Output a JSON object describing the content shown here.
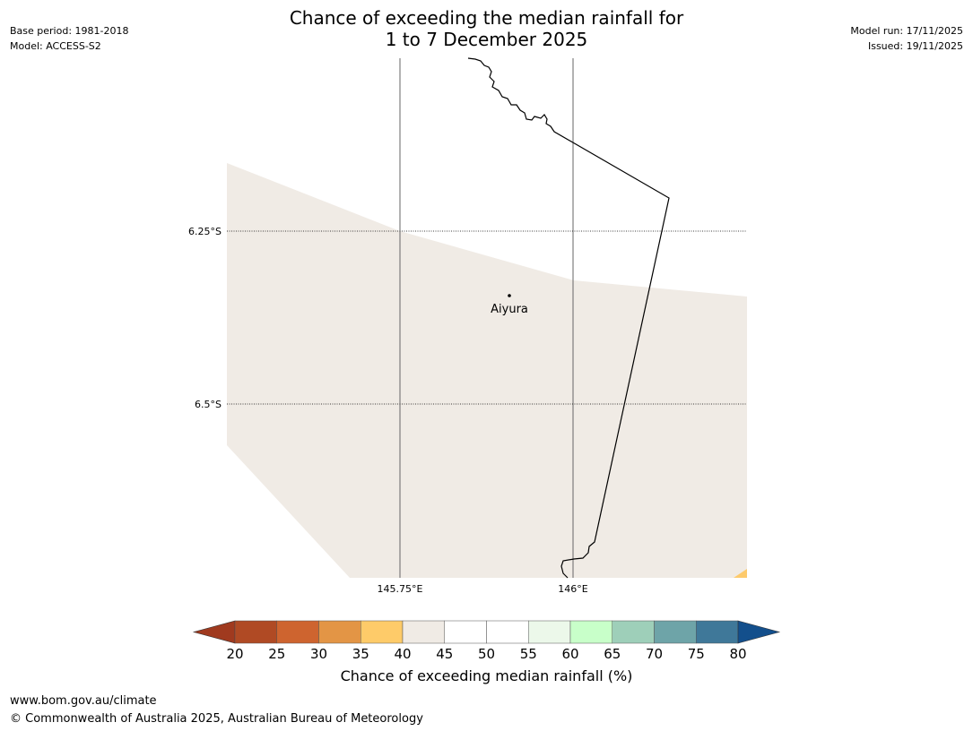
{
  "title_line1": "Chance of exceeding the median rainfall for",
  "title_line2": "1 to 7 December 2025",
  "meta_left": {
    "base_period": "Base period: 1981-2018",
    "model": "Model: ACCESS-S2"
  },
  "meta_right": {
    "model_run": "Model run: 17/11/2025",
    "issued": "Issued: 19/11/2025"
  },
  "map": {
    "latitude_lines": [
      "6.25°S",
      "6.5°S"
    ],
    "longitude_lines": [
      "145.75°E",
      "146°E"
    ],
    "place": {
      "name": "Aiyura"
    },
    "colors": {
      "forecast_area": "#f0ebe5",
      "corner_patch": "#fdca6c",
      "gridline": "#000000",
      "boundary": "#000000"
    }
  },
  "colorbar": {
    "tick_labels": [
      "20",
      "25",
      "30",
      "35",
      "40",
      "45",
      "50",
      "55",
      "60",
      "65",
      "70",
      "75",
      "80"
    ],
    "under_color": "#a03a1f",
    "over_color": "#134f8c",
    "bin_colors": [
      "#b04a24",
      "#ce642f",
      "#e39545",
      "#fecb69",
      "#f0ebe5",
      "#ffffff",
      "#ffffff",
      "#ecf8ea",
      "#c8ffc9",
      "#9ecfb9",
      "#6ea4a8",
      "#3f7899"
    ],
    "label": "Chance of exceeding median rainfall (%)"
  },
  "footer": {
    "url": "www.bom.gov.au/climate",
    "copyright": "© Commonwealth of Australia 2025, Australian Bureau of Meteorology"
  }
}
